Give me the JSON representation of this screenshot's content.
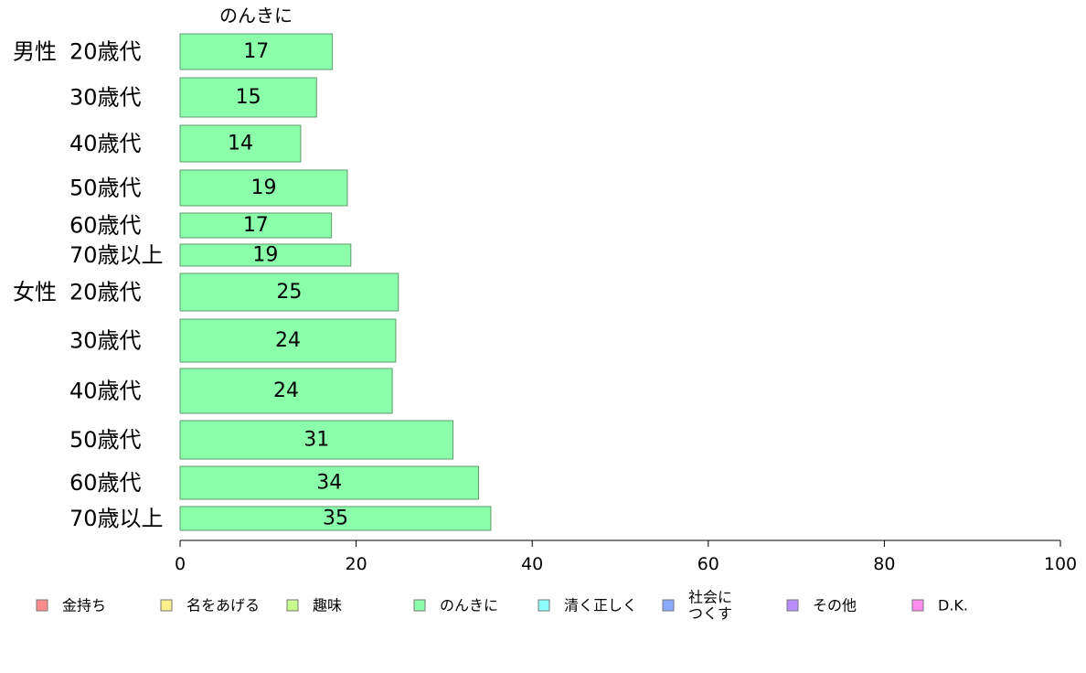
{
  "chart_data": {
    "type": "bar",
    "orientation": "horizontal",
    "series_title": "のんきに",
    "groups": [
      {
        "label": "男性",
        "start_index": 0
      },
      {
        "label": "女性",
        "start_index": 6
      }
    ],
    "categories": [
      "20歳代",
      "30歳代",
      "40歳代",
      "50歳代",
      "60歳代",
      "70歳以上",
      "20歳代",
      "30歳代",
      "40歳代",
      "50歳代",
      "60歳代",
      "70歳以上"
    ],
    "series": [
      {
        "name": "のんきに",
        "color": "#8cffab",
        "values": [
          17.3,
          15.5,
          13.7,
          19.0,
          17.2,
          19.4,
          24.8,
          24.5,
          24.1,
          31.0,
          33.9,
          35.3
        ],
        "labels": [
          "17",
          "15",
          "14",
          "19",
          "17",
          "19",
          "25",
          "24",
          "24",
          "31",
          "34",
          "35"
        ]
      }
    ],
    "xlim": [
      0,
      100
    ],
    "xticks": [
      0,
      20,
      40,
      60,
      80,
      100
    ],
    "grid": false,
    "legend": {
      "placement": "bottom",
      "items": [
        {
          "label": "金持ち",
          "color": "#ff8c8c"
        },
        {
          "label": "名をあげる",
          "color": "#ffee8c"
        },
        {
          "label": "趣味",
          "color": "#c8ff8c"
        },
        {
          "label": "のんきに",
          "color": "#8cffab"
        },
        {
          "label": "清く正しく",
          "color": "#8cffff"
        },
        {
          "label": "社会に\nつくす",
          "color": "#8cabff"
        },
        {
          "label": "その他",
          "color": "#ba8cff"
        },
        {
          "label": "D.K.",
          "color": "#ff8cee"
        }
      ]
    }
  }
}
